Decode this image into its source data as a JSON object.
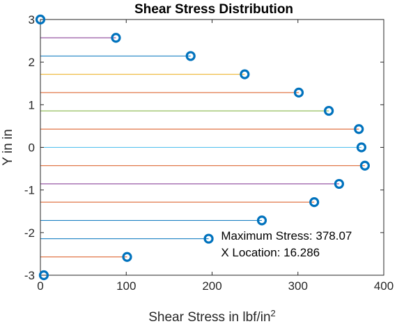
{
  "chart_data": {
    "type": "scatter",
    "title": "Shear Stress Distribution",
    "xlabel": "Shear Stress in lbf/in",
    "xlabel_superscript": "2",
    "ylabel": "Y in in",
    "xlim": [
      0,
      400
    ],
    "ylim": [
      -3,
      3
    ],
    "xticks": [
      0,
      100,
      200,
      300,
      400
    ],
    "yticks": [
      3,
      2,
      1,
      0,
      -1,
      -2,
      -3
    ],
    "grid": false,
    "marker_color": "#0072BD",
    "points": [
      {
        "y": 3.0,
        "x": 0,
        "line_color": null
      },
      {
        "y": 2.5714,
        "x": 88,
        "line_color": "#7E2F8E"
      },
      {
        "y": 2.1429,
        "x": 175,
        "line_color": "#0072BD"
      },
      {
        "y": 1.7143,
        "x": 238,
        "line_color": "#EDB120"
      },
      {
        "y": 1.2857,
        "x": 301,
        "line_color": "#D95319"
      },
      {
        "y": 0.8571,
        "x": 336,
        "line_color": "#77AC30"
      },
      {
        "y": 0.4286,
        "x": 371,
        "line_color": "#D95319"
      },
      {
        "y": 0.0,
        "x": 374,
        "line_color": "#4DBEEE"
      },
      {
        "y": -0.4286,
        "x": 378,
        "line_color": "#D95319"
      },
      {
        "y": -0.8571,
        "x": 348,
        "line_color": "#7E2F8E"
      },
      {
        "y": -1.2857,
        "x": 319,
        "line_color": "#D95319"
      },
      {
        "y": -1.7143,
        "x": 258,
        "line_color": "#0072BD"
      },
      {
        "y": -2.1429,
        "x": 196,
        "line_color": "#0072BD"
      },
      {
        "y": -2.5714,
        "x": 101,
        "line_color": "#D95319"
      },
      {
        "y": -3.0,
        "x": 4,
        "line_color": null
      }
    ],
    "annotation": {
      "line1": "Maximum Stress: 378.07",
      "line2": "X Location: 16.286",
      "x": 208,
      "y": -2.2
    }
  }
}
